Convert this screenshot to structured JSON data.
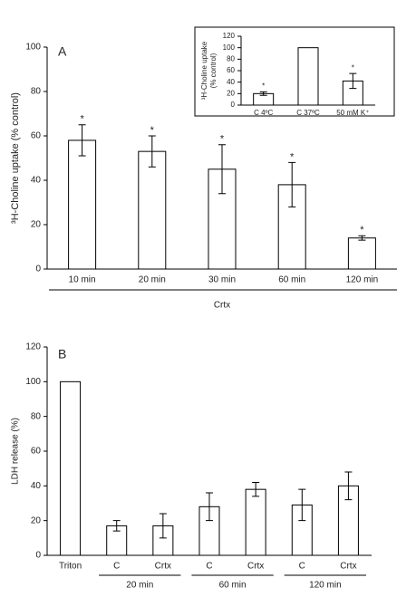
{
  "chart_data": [
    {
      "type": "bar",
      "label": "A",
      "y_label": "³H-Choline uptake (% control)",
      "categories": [
        "10 min",
        "20 min",
        "30 min",
        "60 min",
        "120 min"
      ],
      "values": [
        58,
        53,
        45,
        38,
        14
      ],
      "errors": [
        7,
        7,
        11,
        10,
        1
      ],
      "markers": [
        "*",
        "*",
        "*",
        "*",
        "*"
      ],
      "group_label": "Crtx",
      "color": "#ffffff",
      "ylim": [
        0,
        100
      ],
      "yticks": [
        0,
        20,
        40,
        60,
        80,
        100
      ]
    },
    {
      "type": "bar",
      "y_label": [
        "³H-Choline uptake",
        "(% control)"
      ],
      "categories": [
        "C 4ºC",
        "C 37ºC",
        "50 mM K⁺"
      ],
      "values": [
        20,
        100,
        42
      ],
      "errors": [
        3,
        0,
        13
      ],
      "markers": [
        "*",
        null,
        "*"
      ],
      "color": "#ffffff",
      "ylim": [
        0,
        120
      ],
      "yticks": [
        0,
        20,
        40,
        60,
        80,
        100,
        120
      ]
    },
    {
      "type": "bar",
      "label": "B",
      "y_label": "LDH release (%)",
      "categories": [
        "Triton",
        "C",
        "Crtx",
        "C",
        "Crtx",
        "C",
        "Crtx"
      ],
      "values": [
        100,
        17,
        17,
        28,
        38,
        29,
        40
      ],
      "errors": [
        0,
        3,
        7,
        8,
        4,
        9,
        8
      ],
      "category_groups": [
        null,
        "20 min",
        "20 min",
        "60 min",
        "60 min",
        "120 min",
        "120 min"
      ],
      "color": "#ffffff",
      "ylim": [
        0,
        120
      ],
      "yticks": [
        0,
        20,
        40,
        60,
        80,
        100,
        120
      ]
    }
  ]
}
